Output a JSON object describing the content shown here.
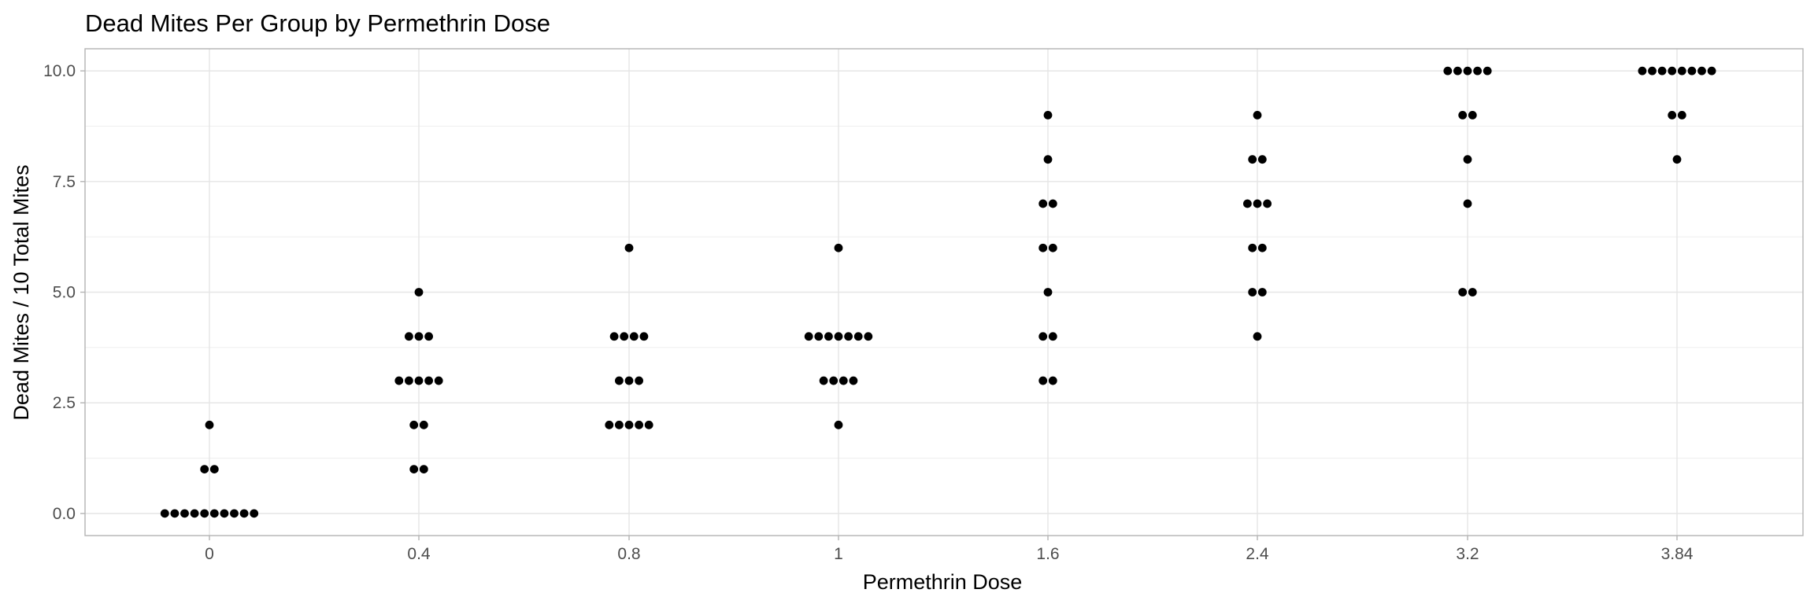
{
  "chart_data": {
    "type": "scatter",
    "subtype": "dotplot",
    "title": "Dead Mites Per Group by Permethrin Dose",
    "xlabel": "Permethrin Dose",
    "ylabel": "Dead Mites / 10 Total Mites",
    "categories": [
      "0",
      "0.4",
      "0.8",
      "1",
      "1.6",
      "2.4",
      "3.2",
      "3.84"
    ],
    "yticks": [
      "0.0",
      "2.5",
      "5.0",
      "7.5",
      "10.0"
    ],
    "ylim": [
      -0.5,
      10.5
    ],
    "grid": true,
    "legend": "none",
    "point_color": "#000000",
    "series": [
      {
        "values": [
          [
            0,
            0,
            0,
            0,
            0,
            0,
            0,
            0,
            0,
            0,
            1,
            1,
            2
          ],
          [
            1,
            1,
            2,
            2,
            3,
            3,
            3,
            3,
            3,
            4,
            4,
            4,
            5
          ],
          [
            2,
            2,
            2,
            2,
            2,
            3,
            3,
            3,
            4,
            4,
            4,
            4,
            6
          ],
          [
            2,
            3,
            3,
            3,
            3,
            4,
            4,
            4,
            4,
            4,
            4,
            4,
            6
          ],
          [
            3,
            3,
            4,
            4,
            5,
            6,
            6,
            7,
            7,
            8,
            9
          ],
          [
            4,
            5,
            5,
            6,
            6,
            7,
            7,
            7,
            8,
            8,
            9
          ],
          [
            5,
            5,
            7,
            8,
            9,
            9,
            10,
            10,
            10,
            10,
            10
          ],
          [
            8,
            9,
            9,
            10,
            10,
            10,
            10,
            10,
            10,
            10,
            10
          ]
        ]
      }
    ]
  }
}
